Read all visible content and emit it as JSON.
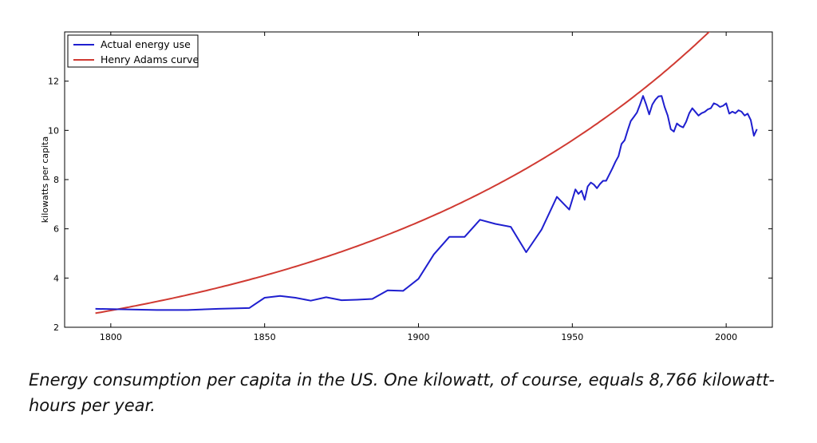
{
  "chart_data": {
    "type": "line",
    "title": "",
    "xlabel": "",
    "ylabel": "kilowatts per capita",
    "xlim": [
      1785,
      2015
    ],
    "ylim": [
      2,
      14
    ],
    "xticks": [
      1800,
      1850,
      1900,
      1950,
      2000
    ],
    "yticks": [
      2,
      4,
      6,
      8,
      10,
      12
    ],
    "grid": false,
    "legend_position": "top-left",
    "series": [
      {
        "name": "Actual energy use",
        "color": "#1f1fcf",
        "x": [
          1795,
          1815,
          1825,
          1835,
          1845,
          1850,
          1855,
          1860,
          1865,
          1870,
          1875,
          1880,
          1885,
          1890,
          1895,
          1900,
          1905,
          1910,
          1915,
          1920,
          1925,
          1930,
          1935,
          1940,
          1945,
          1949,
          1951,
          1952,
          1953,
          1954,
          1955,
          1956,
          1957,
          1958,
          1959,
          1960,
          1961,
          1962,
          1963,
          1964,
          1965,
          1966,
          1967,
          1968,
          1969,
          1970,
          1971,
          1972,
          1973,
          1974,
          1975,
          1976,
          1977,
          1978,
          1979,
          1980,
          1981,
          1982,
          1983,
          1984,
          1985,
          1986,
          1987,
          1988,
          1989,
          1990,
          1991,
          1992,
          1993,
          1994,
          1995,
          1996,
          1997,
          1998,
          1999,
          2000,
          2001,
          2002,
          2003,
          2004,
          2005,
          2006,
          2007,
          2008,
          2009,
          2010
        ],
        "y": [
          2.75,
          2.7,
          2.7,
          2.75,
          2.78,
          3.2,
          3.27,
          3.2,
          3.08,
          3.22,
          3.1,
          3.12,
          3.15,
          3.5,
          3.48,
          3.97,
          4.96,
          5.67,
          5.67,
          6.37,
          6.2,
          6.08,
          5.05,
          5.97,
          7.3,
          6.78,
          7.6,
          7.42,
          7.55,
          7.18,
          7.72,
          7.88,
          7.8,
          7.65,
          7.82,
          7.95,
          7.95,
          8.2,
          8.45,
          8.72,
          8.95,
          9.45,
          9.6,
          10.0,
          10.38,
          10.55,
          10.72,
          11.05,
          11.4,
          11.05,
          10.65,
          11.05,
          11.25,
          11.38,
          11.4,
          10.95,
          10.6,
          10.05,
          9.95,
          10.28,
          10.18,
          10.12,
          10.35,
          10.7,
          10.9,
          10.75,
          10.6,
          10.7,
          10.75,
          10.85,
          10.9,
          11.1,
          11.05,
          10.95,
          11.0,
          11.1,
          10.68,
          10.76,
          10.7,
          10.82,
          10.76,
          10.6,
          10.68,
          10.42,
          9.78,
          10.05
        ]
      },
      {
        "name": "Henry Adams curve",
        "color": "#d03a32",
        "function": "exponential",
        "anchor": {
          "x": 1795,
          "y": 2.57
        },
        "growth_rate_per_year": 0.0085
      }
    ]
  },
  "caption": "Energy consumption per capita in the US. One kilowatt, of course, equals 8,766 kilowatt-hours per year."
}
